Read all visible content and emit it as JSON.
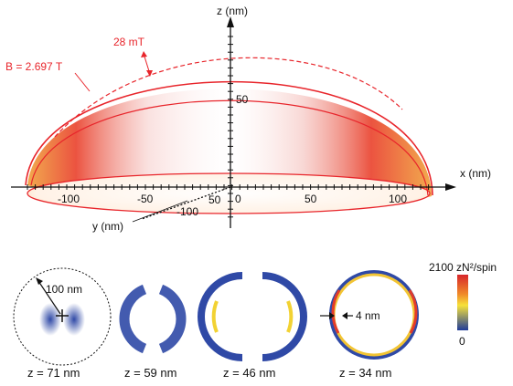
{
  "axes": {
    "z_label": "z (nm)",
    "x_label": "x (nm)",
    "y_label": "y (nm)",
    "z_tick": "50",
    "x_ticks": [
      "-100",
      "-50",
      "0",
      "50",
      "100"
    ],
    "y_ticks": [
      "50",
      "-100"
    ]
  },
  "field": {
    "b_label": "B = 2.697 T",
    "delta_label": "28 mT"
  },
  "colors": {
    "shell_red": "#e8252b",
    "map_high": "#e23b2a",
    "map_mid": "#f2d233",
    "map_low": "#2f49a6"
  },
  "slices": [
    {
      "caption": "z = 71 nm",
      "note": "100 nm"
    },
    {
      "caption": "z = 59 nm"
    },
    {
      "caption": "z = 46 nm"
    },
    {
      "caption": "z = 34 nm",
      "note": "4 nm"
    }
  ],
  "colorbar": {
    "max_label": "2100 zN²/spin",
    "min_label": "0"
  }
}
